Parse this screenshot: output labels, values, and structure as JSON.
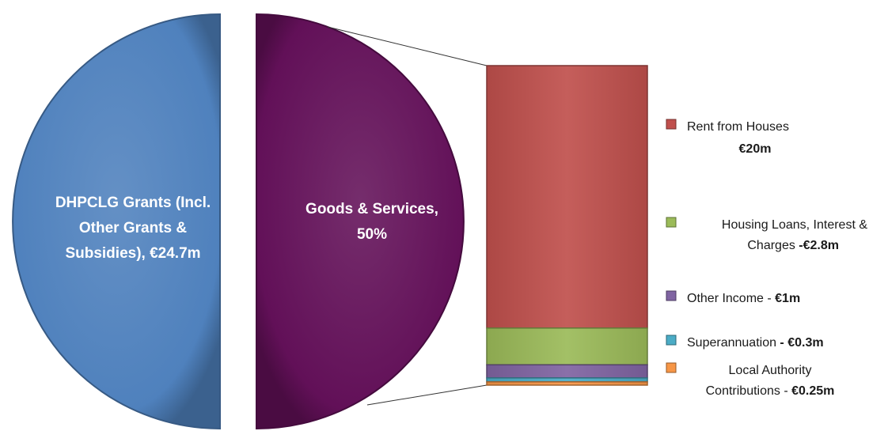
{
  "chart_data": {
    "type": "bar-of-pie",
    "pie": {
      "slices": [
        {
          "label_lines": [
            "DHPCLG Grants (Incl.",
            "Other Grants &",
            "Subsidies), €24.7m"
          ],
          "value": 24.7,
          "percent": 50,
          "color": "#4f81bd"
        },
        {
          "label_lines": [
            "Goods & Services,",
            "50%"
          ],
          "value": 24.35,
          "percent": 50,
          "color": "#621058",
          "exploded_to_bar": true
        }
      ]
    },
    "bar": {
      "segments": [
        {
          "name": "Rent from Houses",
          "value": 20,
          "value_label": "€20m",
          "color": "#c0504d"
        },
        {
          "name": "Housing Loans, Interest & Charges",
          "value": 2.8,
          "value_label": "-€2.8m",
          "color": "#9bbb59"
        },
        {
          "name": "Other Income",
          "value": 1,
          "value_label": "€1m",
          "color": "#8064a2"
        },
        {
          "name": "Superannuation",
          "value": 0.3,
          "value_label": "€0.3m",
          "color": "#4bacc6"
        },
        {
          "name": "Local Authority Contributions",
          "value": 0.25,
          "value_label": "€0.25m",
          "color": "#f79646"
        }
      ]
    },
    "legend": {
      "placement": "right",
      "entries": [
        {
          "lines": [
            {
              "text": "Rent from Houses",
              "bold": false
            },
            {
              "text": "€20m",
              "bold": true
            }
          ],
          "color": "#c0504d"
        },
        {
          "lines": [
            {
              "text": "Housing Loans, Interest &",
              "bold": false
            },
            {
              "text": "Charges ",
              "bold": false,
              "bold_suffix": "-€2.8m"
            }
          ],
          "color": "#9bbb59"
        },
        {
          "lines": [
            {
              "text": "Other Income - ",
              "bold": false,
              "bold_suffix": "€1m"
            }
          ],
          "color": "#8064a2"
        },
        {
          "lines": [
            {
              "text": "Superannuation",
              "bold": false,
              "bold_suffix": " - €0.3m"
            }
          ],
          "color": "#4bacc6"
        },
        {
          "lines": [
            {
              "text": "Local Authority",
              "bold": false
            },
            {
              "text": "Contributions - ",
              "bold": false,
              "bold_suffix": " €0.25m"
            }
          ],
          "color": "#f79646"
        }
      ]
    }
  }
}
